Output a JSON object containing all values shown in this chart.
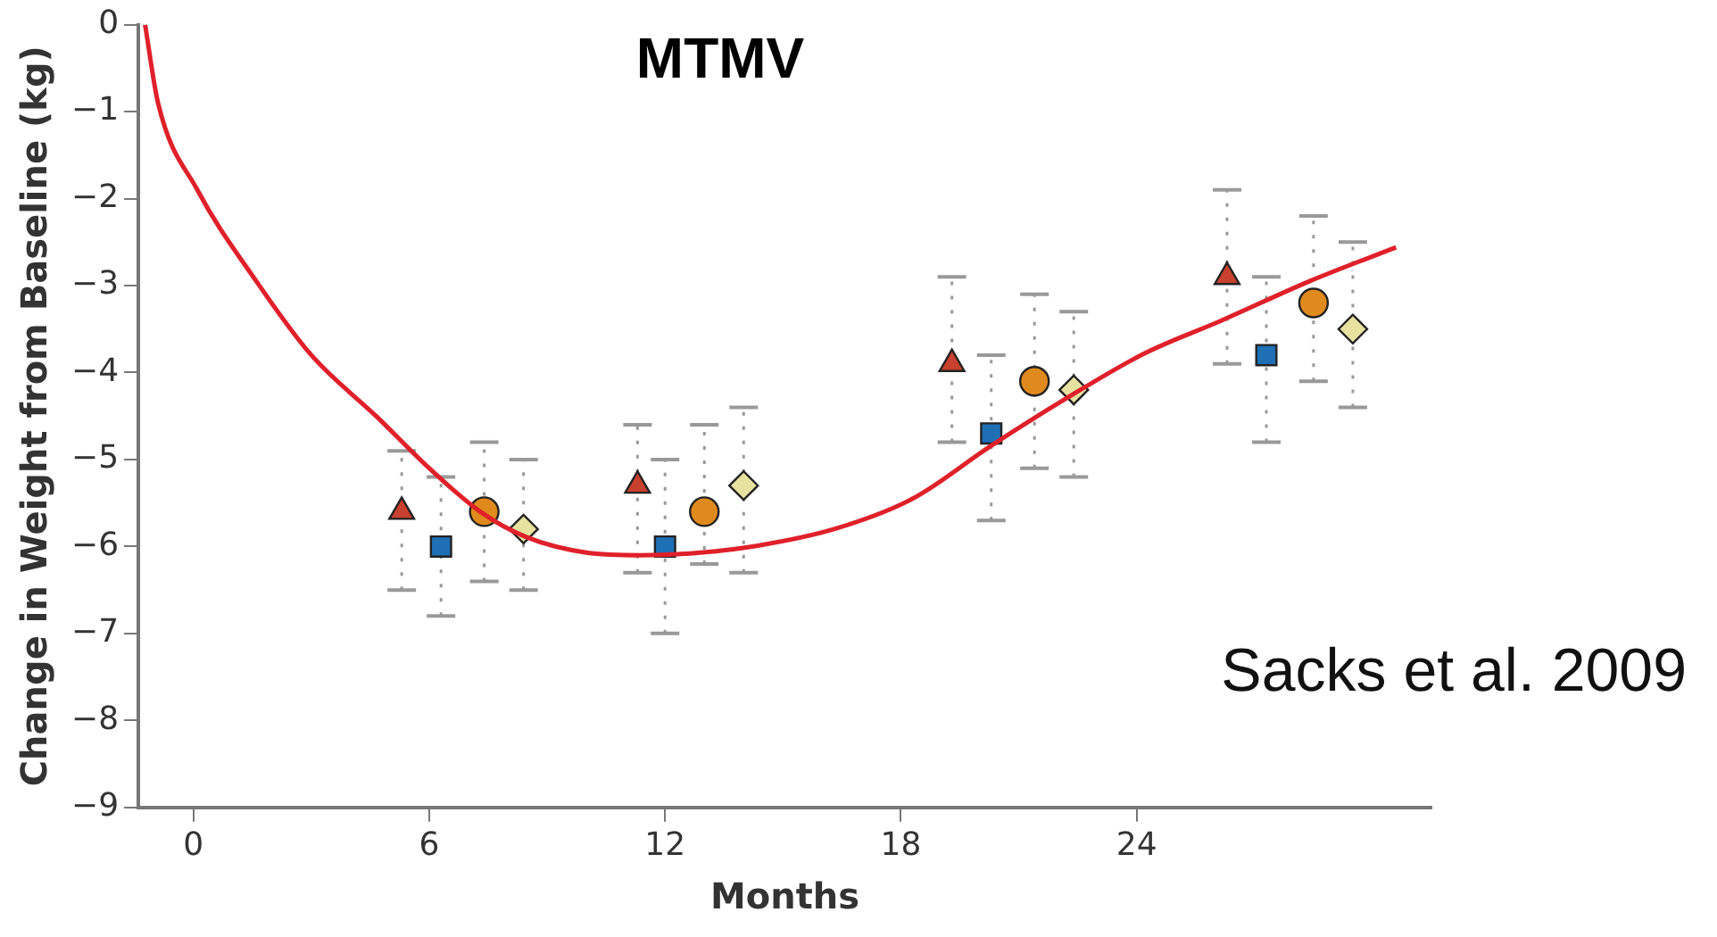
{
  "chart_data": {
    "type": "scatter",
    "title": "MTMV",
    "xlabel": "Months",
    "ylabel": "Change in Weight from Baseline (kg)",
    "annotations": [
      "Sacks et al. 2009"
    ],
    "xlim": [
      -1.4,
      31.5
    ],
    "xticks": [
      0,
      6,
      12,
      18,
      24
    ],
    "ylim": [
      -9,
      0
    ],
    "yticks": [
      0,
      -1,
      -2,
      -3,
      -4,
      -5,
      -6,
      -7,
      -8,
      -9
    ],
    "grid": false,
    "legend": false,
    "series": [
      {
        "type": "line",
        "color": "#e0202a",
        "marker": "none",
        "line_style": "solid",
        "x": [
          -1.23,
          -0.9,
          0.1,
          1.6,
          3.0,
          4.67,
          6.0,
          7.33,
          8.46,
          10,
          11.4,
          12.9,
          14.36,
          16.3,
          18.3,
          20.27,
          22.2,
          24.2,
          26.17,
          28.4,
          30.6
        ],
        "values": [
          0,
          -0.9,
          -1.9,
          -2.95,
          -3.8,
          -4.51,
          -5.1,
          -5.61,
          -5.89,
          -6.07,
          -6.1,
          -6.07,
          -5.99,
          -5.8,
          -5.45,
          -4.85,
          -4.3,
          -3.78,
          -3.4,
          -2.95,
          -2.56
        ]
      },
      {
        "color": "#c8402e",
        "marker": "triangle",
        "x": [
          5.3,
          11.3,
          19.3,
          26.3
        ],
        "values": [
          -5.6,
          -5.3,
          -3.9,
          -2.9
        ],
        "errors": [
          [
            -6.5,
            -4.9
          ],
          [
            -6.3,
            -4.6
          ],
          [
            -4.8,
            -2.9
          ],
          [
            -3.9,
            -1.9
          ]
        ]
      },
      {
        "color": "#1f6fb5",
        "marker": "square",
        "x": [
          6.3,
          12.0,
          20.3,
          27.3
        ],
        "values": [
          -6.0,
          -6.0,
          -4.7,
          -3.8
        ],
        "errors": [
          [
            -6.8,
            -5.2
          ],
          [
            -7.0,
            -5.0
          ],
          [
            -5.7,
            -3.8
          ],
          [
            -4.8,
            -2.9
          ]
        ]
      },
      {
        "color": "#e08a1e",
        "marker": "circle",
        "x": [
          7.4,
          13.0,
          21.4,
          28.5
        ],
        "values": [
          -5.6,
          -5.6,
          -4.1,
          -3.2
        ],
        "errors": [
          [
            -6.4,
            -4.8
          ],
          [
            -6.2,
            -4.6
          ],
          [
            -5.1,
            -3.1
          ],
          [
            -4.1,
            -2.2
          ]
        ]
      },
      {
        "color": "#e8e2a0",
        "marker": "diamond",
        "x": [
          8.4,
          14.0,
          22.4,
          29.5
        ],
        "values": [
          -5.8,
          -5.3,
          -4.2,
          -3.5
        ],
        "errors": [
          [
            -6.5,
            -5.0
          ],
          [
            -6.3,
            -4.4
          ],
          [
            -5.2,
            -3.3
          ],
          [
            -4.4,
            -2.5
          ]
        ]
      }
    ]
  }
}
